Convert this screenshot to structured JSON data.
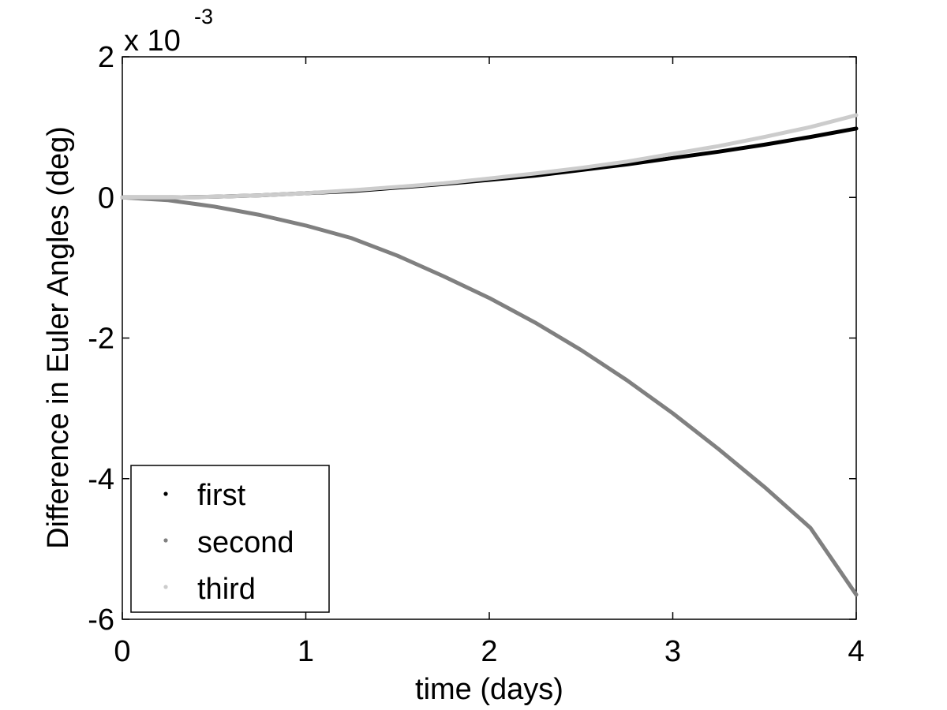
{
  "chart_data": {
    "type": "line",
    "title": "",
    "xlabel": "time (days)",
    "ylabel": "Difference in Euler Angles (deg)",
    "y_multiplier_base": "x 10",
    "y_multiplier_exp": "-3",
    "xlim": [
      0,
      4
    ],
    "ylim": [
      -6,
      2
    ],
    "xticks": [
      0,
      1,
      2,
      3,
      4
    ],
    "yticks": [
      -6,
      -4,
      -2,
      0,
      2
    ],
    "grid": false,
    "legend_position": "bottom-left",
    "x": [
      0,
      0.25,
      0.5,
      0.75,
      1,
      1.25,
      1.5,
      1.75,
      2,
      2.25,
      2.5,
      2.75,
      3,
      3.25,
      3.5,
      3.75,
      4
    ],
    "series": [
      {
        "name": "first",
        "color": "#000000",
        "values": [
          0,
          0.0,
          0.01,
          0.03,
          0.06,
          0.09,
          0.14,
          0.19,
          0.25,
          0.31,
          0.39,
          0.47,
          0.56,
          0.65,
          0.75,
          0.86,
          0.98
        ]
      },
      {
        "name": "second",
        "color": "#808080",
        "values": [
          0,
          -0.04,
          -0.13,
          -0.25,
          -0.4,
          -0.58,
          -0.83,
          -1.12,
          -1.43,
          -1.78,
          -2.17,
          -2.6,
          -3.07,
          -3.58,
          -4.12,
          -4.7,
          -5.65
        ]
      },
      {
        "name": "third",
        "color": "#cccccc",
        "values": [
          0,
          0.0,
          0.01,
          0.03,
          0.06,
          0.1,
          0.15,
          0.2,
          0.27,
          0.34,
          0.42,
          0.51,
          0.62,
          0.73,
          0.86,
          1.0,
          1.17
        ]
      }
    ]
  }
}
